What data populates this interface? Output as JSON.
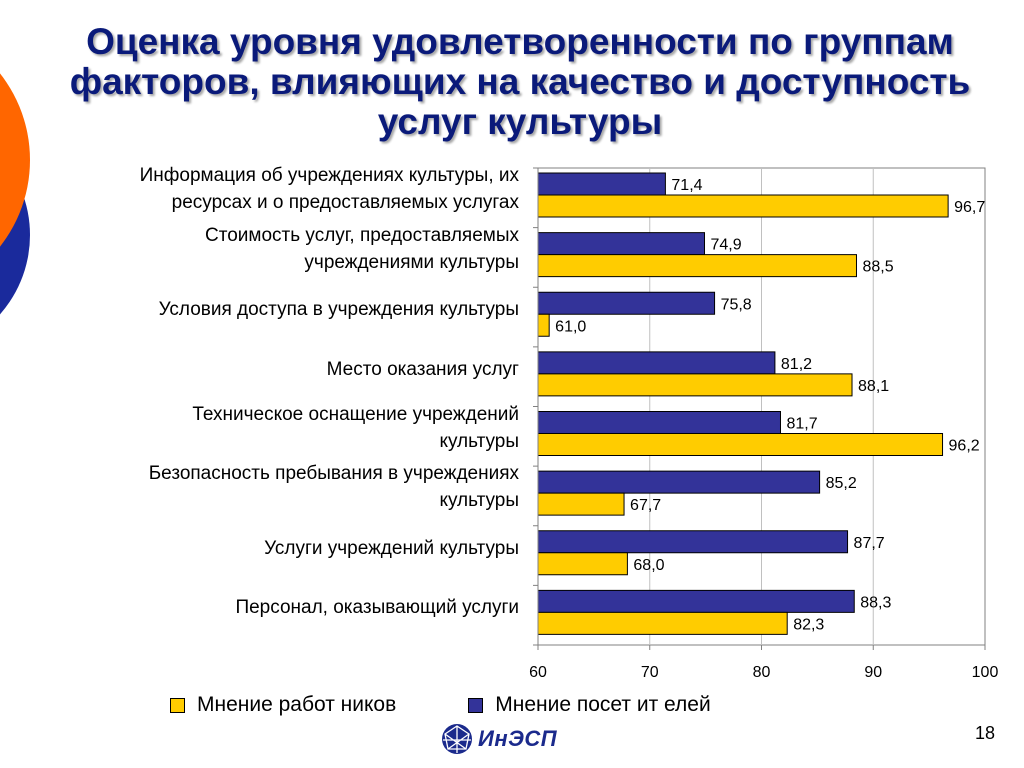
{
  "colors": {
    "series_staff": "#ffcc00",
    "series_visitors": "#333399",
    "title": "#0a1a7a",
    "deco_orange": "#ff6600",
    "deco_blue": "#1a2a9c"
  },
  "slide": {
    "title_lines": [
      "Оценка уровня удовлетворенности по группам",
      "факторов, влияющих на качество и доступность",
      "услуг культуры"
    ],
    "page_number": "18",
    "logo_text": "ИнЭСП",
    "logo_icon": "globe-mesh-icon"
  },
  "chart_data": {
    "type": "bar",
    "orientation": "horizontal",
    "categories": [
      [
        "Информация об учреждениях культуры, их",
        "ресурсах и о предоставляемых услугах"
      ],
      [
        "Стоимость услуг, предоставляемых",
        "учреждениями культуры"
      ],
      [
        "Условия доступа в учреждения культуры"
      ],
      [
        "Место оказания услуг"
      ],
      [
        "Техническое оснащение учреждений",
        "культуры"
      ],
      [
        "Безопасность пребывания в учреждениях",
        "культуры"
      ],
      [
        "Услуги учреждений культуры"
      ],
      [
        "Персонал, оказывающий услуги"
      ]
    ],
    "series": [
      {
        "name": "Мнение посет ит елей",
        "values": [
          71.4,
          74.9,
          75.8,
          81.2,
          81.7,
          85.2,
          87.7,
          88.3
        ],
        "labels": [
          "71,4",
          "74,9",
          "75,8",
          "81,2",
          "81,7",
          "85,2",
          "87,7",
          "88,3"
        ]
      },
      {
        "name": "Мнение работ ников",
        "values": [
          96.7,
          88.5,
          61.0,
          88.1,
          96.2,
          67.7,
          68.0,
          82.3
        ],
        "labels": [
          "96,7",
          "88,5",
          "61,0",
          "88,1",
          "96,2",
          "67,7",
          "68,0",
          "82,3"
        ]
      }
    ],
    "xlim": [
      60,
      100
    ],
    "xticks": [
      "60",
      "70",
      "80",
      "90",
      "100"
    ],
    "grid": true,
    "legend_position": "bottom"
  }
}
